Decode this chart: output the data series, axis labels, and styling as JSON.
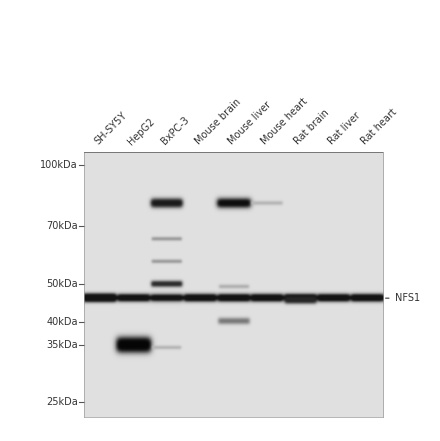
{
  "background_color": [
    0.86,
    0.86,
    0.86
  ],
  "outer_background": "#ffffff",
  "mw_labels": [
    "100kDa",
    "70kDa",
    "50kDa",
    "40kDa",
    "35kDa",
    "25kDa"
  ],
  "mw_positions_kda": [
    100,
    70,
    50,
    40,
    35,
    25
  ],
  "log_mw_min": 3.135,
  "log_mw_max": 4.615,
  "lane_labels": [
    "SH-SY5Y",
    "HepG2",
    "BxPC-3",
    "Mouse brain",
    "Mouse liver",
    "Mouse heart",
    "Rat brain",
    "Rat liver",
    "Rat heart"
  ],
  "nfs1_label": "NFS1",
  "nfs1_mw_kda": 46,
  "label_fontsize": 7,
  "mw_fontsize": 7,
  "label_color": "#333333",
  "tick_color": "#555555"
}
